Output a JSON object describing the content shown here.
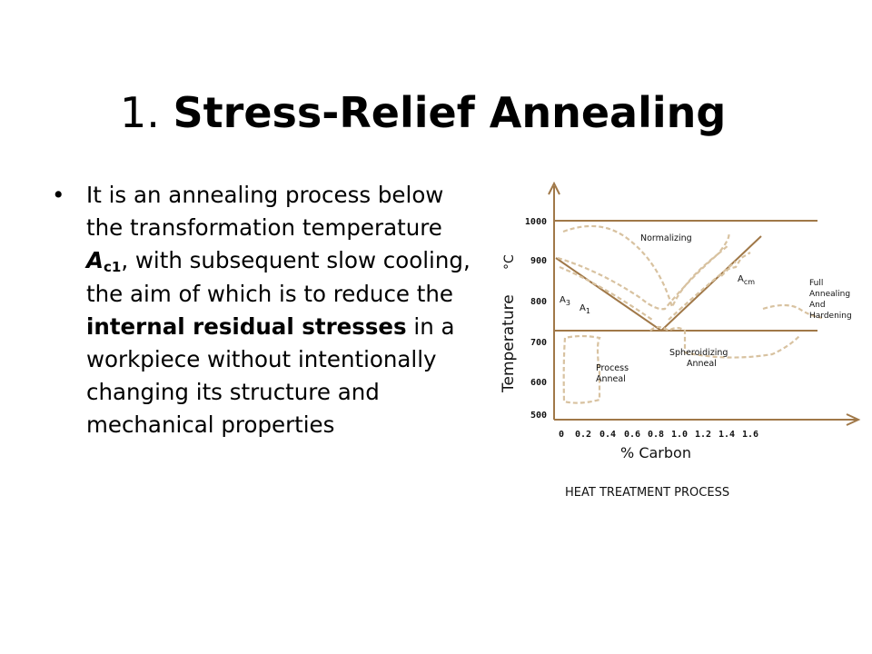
{
  "slide": {
    "title_number": "1.",
    "title_text": "Stress-Relief Annealing",
    "bullet_symbol": "•",
    "paragraph": {
      "text_1": "It is an annealing process below the transformation temperature ",
      "symbol_a": "A",
      "symbol_sub": "c1",
      "text_2": ", with subsequent slow cooling, the aim of which is to reduce the ",
      "bold_phrase": "internal residual stresses",
      "text_3": " in a workpiece without intentionally changing its structure and mechanical properties"
    }
  },
  "diagram": {
    "caption": "HEAT TREATMENT PROCESS",
    "y_axis_title": "Temperature",
    "y_axis_unit": "°C",
    "x_axis_title": "% Carbon",
    "y_ticks": [
      "1000",
      "900",
      "800",
      "700",
      "600",
      "500"
    ],
    "x_ticks": [
      "0",
      "0.2",
      "0.4",
      "0.6",
      "0.8",
      "1.0",
      "1.2",
      "1.4",
      "1.6"
    ],
    "labels": {
      "normalizing": "Normalizing",
      "acm_main": "A",
      "acm_sub": "cm",
      "a3_main": "A",
      "a3_sub": "3",
      "a1_main": "A",
      "a1_sub": "1",
      "spheroidizing_1": "Spheroidizing",
      "spheroidizing_2": "Anneal",
      "process_1": "Process",
      "process_2": "Anneal",
      "full_1": "Full",
      "full_2": "Annealing",
      "full_3": "And",
      "full_4": "Hardening"
    },
    "colors": {
      "line": "#a07848",
      "dashed": "#d8c2a0",
      "text": "#111111"
    }
  }
}
